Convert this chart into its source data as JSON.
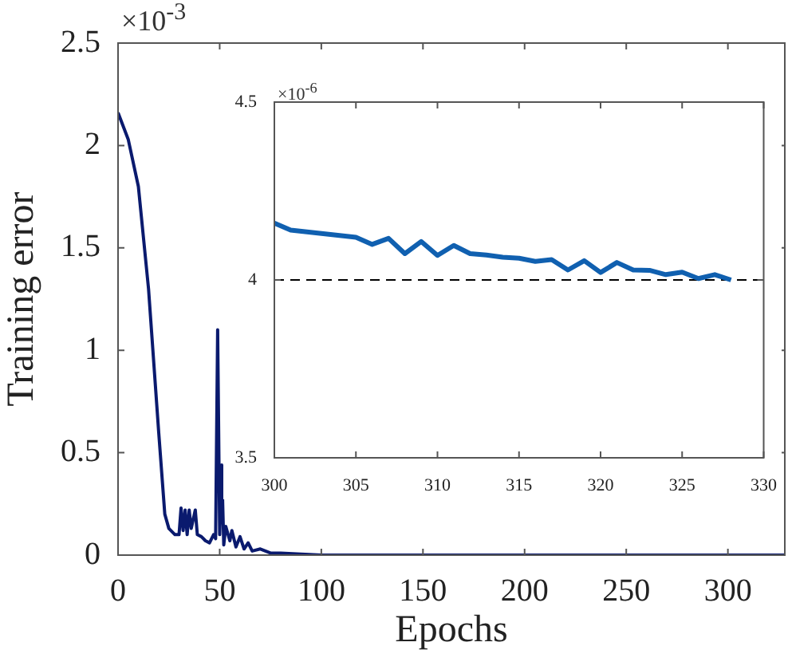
{
  "chart_data": [
    {
      "type": "line",
      "xlabel": "Epochs",
      "ylabel": "Training error",
      "annotations": [
        "×10$^{-3}$"
      ],
      "color": "#0a1a6e",
      "x": [
        0,
        5,
        10,
        15,
        20,
        23,
        25,
        28,
        30,
        31,
        32,
        33,
        34,
        35,
        36,
        38,
        39,
        41,
        43,
        45,
        47,
        48,
        49,
        50,
        51,
        52,
        53,
        55,
        56,
        58,
        60,
        62,
        64,
        66,
        70,
        75,
        80,
        100,
        328
      ],
      "values": [
        2.16,
        2.03,
        1.8,
        1.3,
        0.6,
        0.2,
        0.13,
        0.1,
        0.1,
        0.23,
        0.12,
        0.22,
        0.1,
        0.22,
        0.13,
        0.22,
        0.1,
        0.09,
        0.07,
        0.06,
        0.1,
        0.08,
        1.1,
        0.1,
        0.44,
        0.05,
        0.14,
        0.07,
        0.12,
        0.04,
        0.09,
        0.03,
        0.06,
        0.02,
        0.03,
        0.01,
        0.01,
        0,
        0
      ],
      "xlim": [
        0,
        328
      ],
      "xticks": [
        0,
        50,
        100,
        150,
        200,
        250,
        300
      ],
      "ylim": [
        0,
        2.5
      ],
      "yticks": [
        0,
        0.5,
        1,
        1.5,
        2,
        2.5
      ]
    },
    {
      "type": "line",
      "annotations": [
        "×10$^{-6}$"
      ],
      "color": "#1060b0",
      "x": [
        300,
        301,
        302,
        303,
        304,
        305,
        306,
        307,
        308,
        309,
        310,
        311,
        312,
        313,
        314,
        315,
        316,
        317,
        318,
        319,
        320,
        321,
        322,
        323,
        324,
        325,
        326,
        327,
        328
      ],
      "values": [
        4.16,
        4.14,
        4.135,
        4.13,
        4.125,
        4.12,
        4.1,
        4.117,
        4.074,
        4.108,
        4.069,
        4.097,
        4.074,
        4.07,
        4.064,
        4.061,
        4.052,
        4.057,
        4.028,
        4.054,
        4.021,
        4.049,
        4.028,
        4.027,
        4.015,
        4.022,
        4.004,
        4.015,
        4.0
      ],
      "xlim": [
        300,
        330
      ],
      "xticks": [
        300,
        305,
        310,
        315,
        320,
        325,
        330
      ],
      "ylim": [
        3.5,
        4.5
      ],
      "yticks": [
        3.5,
        4,
        4.5
      ],
      "ref_lines": [
        {
          "axis": "y",
          "value": 4,
          "color": "#000000",
          "line_style": "dashed"
        }
      ]
    }
  ]
}
